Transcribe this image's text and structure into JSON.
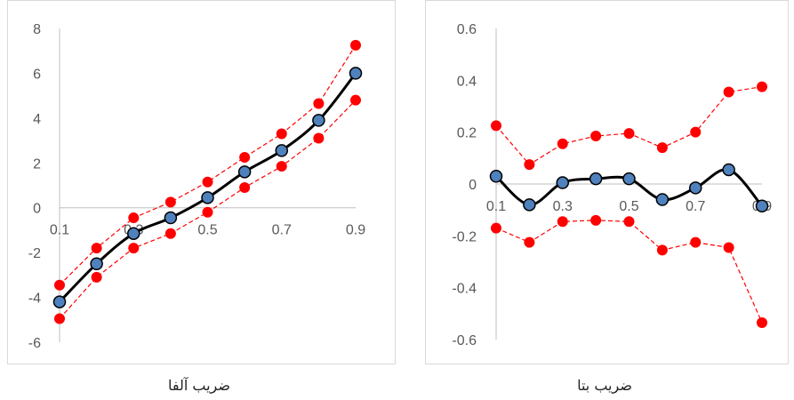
{
  "colors": {
    "central": "#000000",
    "marker_fill": "#4f81bd",
    "band": "#ff0000",
    "frame": "#d9d9d9",
    "axis": "#bfbfbf",
    "tick_text": "#595959"
  },
  "captions": {
    "alpha": "ضریب آلفا",
    "beta": "ضریب بتا"
  },
  "chart_data": [
    {
      "type": "line",
      "title": "",
      "x": [
        0.1,
        0.2,
        0.3,
        0.4,
        0.5,
        0.6,
        0.7,
        0.8,
        0.9
      ],
      "x_tick_labels": [
        "0.1",
        "0.3",
        "0.5",
        "0.7",
        "0.9"
      ],
      "y_tick_labels": [
        "8",
        "6",
        "4",
        "2",
        "0",
        "-2",
        "-4",
        "-6"
      ],
      "ylim": [
        -6,
        8
      ],
      "grid": false,
      "series": [
        {
          "style": "solid",
          "values": [
            -4.2,
            -2.5,
            -1.15,
            -0.45,
            0.45,
            1.6,
            2.55,
            3.9,
            6.0
          ]
        },
        {
          "style": "dashed",
          "values": [
            -3.45,
            -1.8,
            -0.45,
            0.25,
            1.15,
            2.25,
            3.3,
            4.65,
            7.25
          ]
        },
        {
          "style": "dashed",
          "values": [
            -4.95,
            -3.1,
            -1.8,
            -1.15,
            -0.2,
            0.9,
            1.85,
            3.1,
            4.8
          ]
        }
      ]
    },
    {
      "type": "line",
      "title": "",
      "x": [
        0.1,
        0.2,
        0.3,
        0.4,
        0.5,
        0.6,
        0.7,
        0.8,
        0.9
      ],
      "x_tick_labels": [
        "0.1",
        "0.3",
        "0.5",
        "0.7",
        "0.9"
      ],
      "y_tick_labels": [
        "0.6",
        "0.4",
        "0.2",
        "0",
        "-0.2",
        "-0.4",
        "-0.6"
      ],
      "ylim": [
        -0.6,
        0.6
      ],
      "grid": false,
      "series": [
        {
          "style": "solid",
          "values": [
            0.03,
            -0.08,
            0.005,
            0.02,
            0.02,
            -0.06,
            -0.015,
            0.055,
            -0.085
          ]
        },
        {
          "style": "dashed",
          "values": [
            0.225,
            0.075,
            0.155,
            0.185,
            0.195,
            0.14,
            0.2,
            0.355,
            0.375
          ]
        },
        {
          "style": "dashed",
          "values": [
            -0.17,
            -0.225,
            -0.145,
            -0.14,
            -0.145,
            -0.255,
            -0.225,
            -0.245,
            -0.535
          ]
        }
      ]
    }
  ]
}
